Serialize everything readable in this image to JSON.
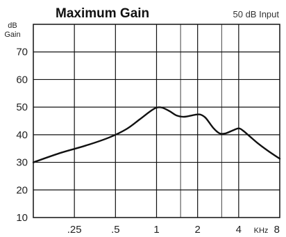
{
  "chart_data": {
    "type": "line",
    "title": "Maximum Gain",
    "subtitle": "50 dB Input",
    "ylabel": [
      "dB",
      "Gain"
    ],
    "xunit": "KHz",
    "xscale": "log",
    "xlim": [
      0.125,
      8
    ],
    "ylim": [
      10,
      80
    ],
    "grid": true,
    "ytick_values": [
      10,
      20,
      30,
      40,
      50,
      60,
      70
    ],
    "ytick_labels": [
      "10",
      "20",
      "30",
      "40",
      "50",
      "60",
      "70"
    ],
    "xtick_values": [
      0.25,
      0.5,
      1,
      2,
      4,
      8
    ],
    "xtick_labels": [
      ".25",
      ".5",
      "1",
      "2",
      "4",
      "8"
    ],
    "extra_vertical_gridlines": [
      1.5,
      3
    ],
    "series": [
      {
        "x": [
          0.125,
          0.2,
          0.3,
          0.45,
          0.6,
          0.75,
          0.9,
          1.0,
          1.1,
          1.25,
          1.4,
          1.6,
          1.9,
          2.1,
          2.3,
          2.6,
          2.9,
          3.2,
          3.6,
          4.0,
          4.3,
          4.8,
          5.5,
          6.5,
          8.0
        ],
        "y": [
          30,
          33.5,
          36,
          39,
          42,
          45.5,
          48.5,
          49.8,
          49.8,
          48.5,
          47,
          46.5,
          47.2,
          47.3,
          46,
          42.5,
          40.5,
          40.5,
          41.5,
          42.3,
          41.5,
          39.5,
          37,
          34.3,
          31.3
        ]
      }
    ]
  }
}
